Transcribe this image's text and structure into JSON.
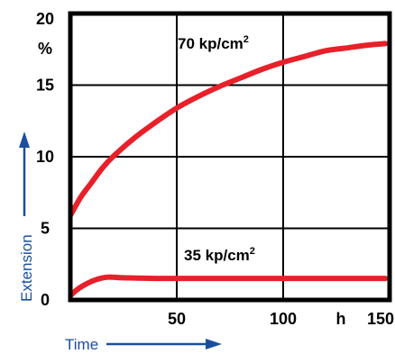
{
  "chart_data": {
    "type": "line",
    "title": "",
    "xlabel": "Time",
    "ylabel": "Extension",
    "xlim": [
      0,
      150
    ],
    "ylim": [
      0,
      20
    ],
    "x_ticks": [
      {
        "value": 50,
        "label": "50"
      },
      {
        "value": 100,
        "label": "100"
      },
      {
        "value": 150,
        "label": "150"
      }
    ],
    "x_unit_label": "h",
    "y_ticks": [
      {
        "value": 0,
        "label": "0"
      },
      {
        "value": 5,
        "label": "5"
      },
      {
        "value": 10,
        "label": "10"
      },
      {
        "value": 15,
        "label": "15"
      },
      {
        "value": 20,
        "label": "20"
      }
    ],
    "y_unit_label": "%",
    "grid": true,
    "axis_label_color": "#1a4fa0",
    "series": [
      {
        "label": "70 kp/cm",
        "label_superscript": "2",
        "color": "#e8202a",
        "x": [
          0,
          5,
          10,
          15,
          20,
          30,
          40,
          50,
          60,
          70,
          80,
          90,
          100,
          110,
          120,
          130,
          140,
          148
        ],
        "y": [
          5.9,
          7.2,
          8.2,
          9.2,
          10.0,
          11.3,
          12.4,
          13.4,
          14.2,
          14.9,
          15.5,
          16.1,
          16.6,
          17.0,
          17.4,
          17.6,
          17.8,
          17.9
        ]
      },
      {
        "label": "35 kp/cm",
        "label_superscript": "2",
        "color": "#e8202a",
        "x": [
          0,
          3,
          6,
          10,
          14,
          18,
          25,
          40,
          60,
          80,
          100,
          120,
          140,
          148
        ],
        "y": [
          0.3,
          0.7,
          1.0,
          1.3,
          1.5,
          1.6,
          1.55,
          1.5,
          1.5,
          1.5,
          1.5,
          1.5,
          1.5,
          1.5
        ]
      }
    ]
  }
}
